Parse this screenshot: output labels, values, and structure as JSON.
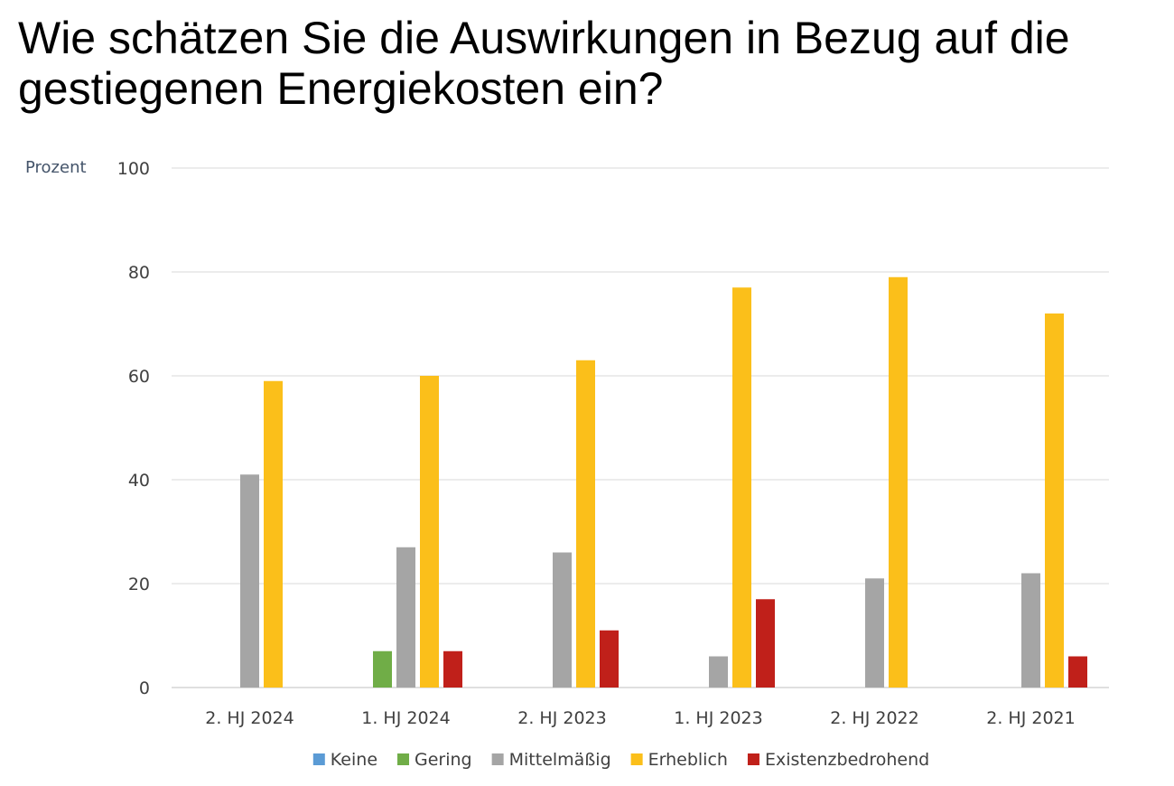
{
  "chart_data": {
    "type": "bar",
    "title": "Wie schätzen Sie die Auswirkungen in Bezug auf die gestiegenen Energiekosten ein?",
    "ylabel": "Prozent",
    "xlabel": "",
    "ylim": [
      0,
      100
    ],
    "yticks": [
      0,
      20,
      40,
      60,
      80,
      100
    ],
    "grid": true,
    "legend_position": "bottom",
    "categories": [
      "2. HJ 2024",
      "1. HJ 2024",
      "2. HJ 2023",
      "1. HJ 2023",
      "2. HJ 2022",
      "2. HJ 2021"
    ],
    "series": [
      {
        "name": "Keine",
        "color": "#5b9bd5",
        "values": [
          0,
          0,
          0,
          0,
          0,
          0
        ]
      },
      {
        "name": "Gering",
        "color": "#70ad47",
        "values": [
          0,
          7,
          0,
          0,
          0,
          0
        ]
      },
      {
        "name": "Mittelmäßig",
        "color": "#a5a5a5",
        "values": [
          41,
          27,
          26,
          6,
          21,
          22
        ]
      },
      {
        "name": "Erheblich",
        "color": "#fbbf1a",
        "values": [
          59,
          60,
          63,
          77,
          79,
          72
        ]
      },
      {
        "name": "Existenzbedrohend",
        "color": "#c0201a",
        "values": [
          0,
          7,
          11,
          17,
          0,
          6
        ]
      }
    ]
  }
}
